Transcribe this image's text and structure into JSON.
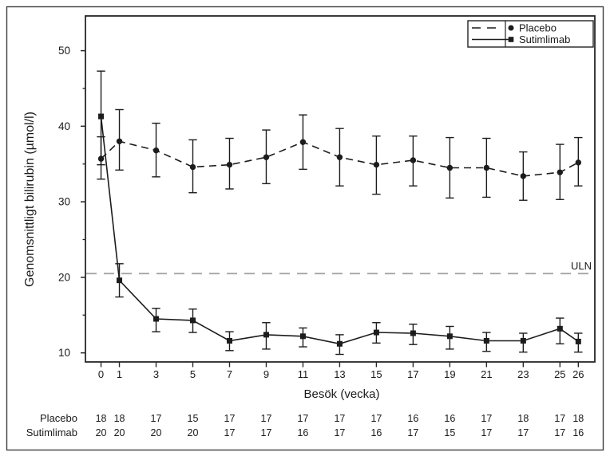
{
  "figure": {
    "ylabel": "Genomsnittligt bilirubin (µmol/l)",
    "xlabel": "Besök (vecka)",
    "uln_label": "ULN"
  },
  "legend": {
    "position": "top-right",
    "entries": [
      {
        "label": "Placebo",
        "marker": "circle",
        "line": "dashed"
      },
      {
        "label": "Sutimlimab",
        "marker": "square",
        "line": "solid"
      }
    ]
  },
  "chart_data": {
    "type": "line",
    "title": "",
    "xlabel": "Besök (vecka)",
    "ylabel": "Genomsnittligt bilirubin (µmol/l)",
    "x": [
      0,
      1,
      3,
      5,
      7,
      9,
      11,
      13,
      15,
      17,
      19,
      21,
      23,
      25,
      26
    ],
    "x_tick_labels": [
      "0",
      "1",
      "3",
      "5",
      "7",
      "9",
      "11",
      "13",
      "15",
      "17",
      "19",
      "21",
      "23",
      "25",
      "26"
    ],
    "y_major_ticks": [
      10,
      20,
      30,
      40,
      50
    ],
    "y_minor_ticks": [
      15,
      25,
      35,
      45
    ],
    "xlim": [
      -0.85,
      26.9
    ],
    "ylim": [
      8.8,
      54.6
    ],
    "grid": false,
    "legend_position": "top-right",
    "reference_line": {
      "label": "ULN",
      "value": 20.5,
      "style": "dashed",
      "color": "#a9a9a9"
    },
    "series": [
      {
        "name": "Placebo",
        "marker": "circle",
        "line_style": "dashed",
        "color": "#1c1c1c",
        "values": [
          35.7,
          38.0,
          36.8,
          34.6,
          34.9,
          35.9,
          37.9,
          35.9,
          34.9,
          35.5,
          34.5,
          34.5,
          33.4,
          33.9,
          35.2
        ],
        "ci_low": [
          33.0,
          34.2,
          33.3,
          31.2,
          31.7,
          32.4,
          34.3,
          32.1,
          31.0,
          32.1,
          30.5,
          30.6,
          30.2,
          30.3,
          32.1
        ],
        "ci_high": [
          38.6,
          42.2,
          40.4,
          38.2,
          38.4,
          39.5,
          41.5,
          39.7,
          38.7,
          38.7,
          38.5,
          38.4,
          36.6,
          37.6,
          38.5
        ]
      },
      {
        "name": "Sutimlimab",
        "marker": "square",
        "line_style": "solid",
        "color": "#1c1c1c",
        "values": [
          41.3,
          19.6,
          14.5,
          14.3,
          11.6,
          12.4,
          12.2,
          11.2,
          12.7,
          12.6,
          12.2,
          11.6,
          11.6,
          13.2,
          11.5
        ],
        "ci_low": [
          34.9,
          17.4,
          12.8,
          12.7,
          10.3,
          10.5,
          10.8,
          9.8,
          11.3,
          11.1,
          10.5,
          10.2,
          10.1,
          11.2,
          10.1
        ],
        "ci_high": [
          47.3,
          21.8,
          15.9,
          15.8,
          12.8,
          14.0,
          13.3,
          12.4,
          14.0,
          13.8,
          13.5,
          12.7,
          12.6,
          14.6,
          12.6
        ]
      }
    ],
    "n_table": {
      "rows": [
        {
          "label": "Placebo",
          "values": [
            18,
            18,
            17,
            15,
            17,
            17,
            17,
            17,
            17,
            16,
            16,
            17,
            18,
            17,
            18
          ]
        },
        {
          "label": "Sutimlimab",
          "values": [
            20,
            20,
            20,
            20,
            17,
            17,
            16,
            17,
            16,
            17,
            15,
            17,
            17,
            17,
            16
          ]
        }
      ]
    }
  }
}
